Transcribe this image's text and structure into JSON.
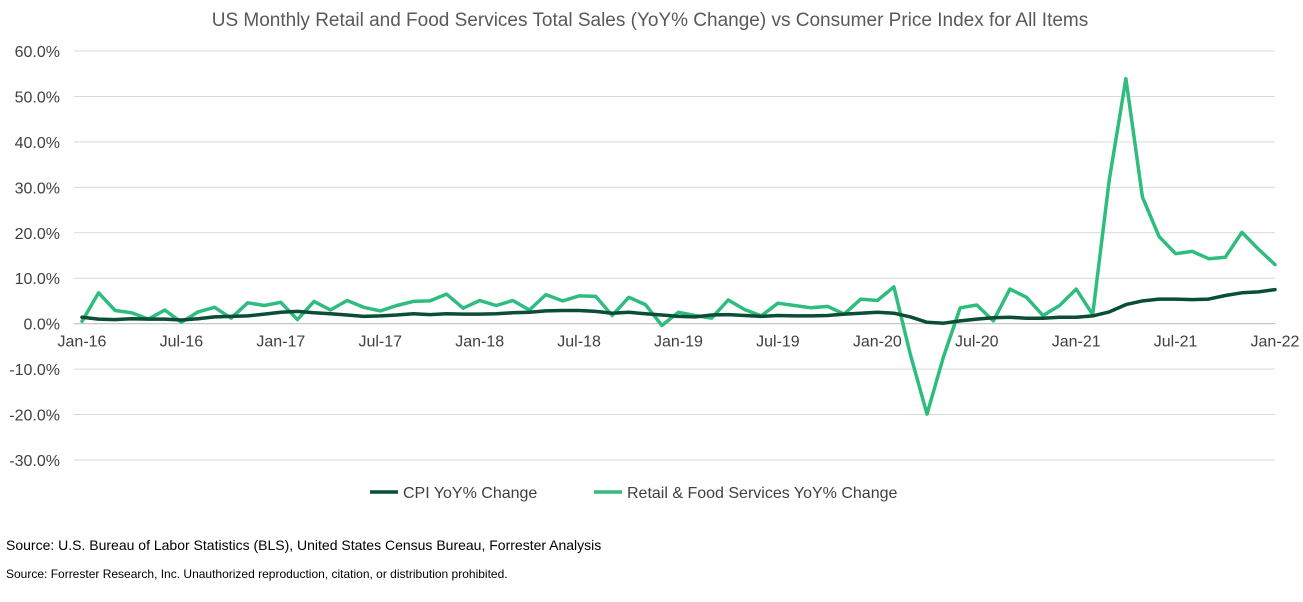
{
  "chart_data": {
    "type": "line",
    "title": "US Monthly Retail and Food Services Total Sales (YoY% Change) vs Consumer Price Index for All Items",
    "xlabel": "",
    "ylabel": "",
    "ylim": [
      -30,
      60
    ],
    "yticks": [
      "60.0%",
      "50.0%",
      "40.0%",
      "30.0%",
      "20.0%",
      "10.0%",
      "0.0%",
      "-10.0%",
      "-20.0%",
      "-30.0%"
    ],
    "x_tick_labels": [
      "Jan-16",
      "Jul-16",
      "Jan-17",
      "Jul-17",
      "Jan-18",
      "Jul-18",
      "Jan-19",
      "Jul-19",
      "Jan-20",
      "Jul-20",
      "Jan-21",
      "Jul-21",
      "Jan-22"
    ],
    "x": [
      "Jan-16",
      "Feb-16",
      "Mar-16",
      "Apr-16",
      "May-16",
      "Jun-16",
      "Jul-16",
      "Aug-16",
      "Sep-16",
      "Oct-16",
      "Nov-16",
      "Dec-16",
      "Jan-17",
      "Feb-17",
      "Mar-17",
      "Apr-17",
      "May-17",
      "Jun-17",
      "Jul-17",
      "Aug-17",
      "Sep-17",
      "Oct-17",
      "Nov-17",
      "Dec-17",
      "Jan-18",
      "Feb-18",
      "Mar-18",
      "Apr-18",
      "May-18",
      "Jun-18",
      "Jul-18",
      "Aug-18",
      "Sep-18",
      "Oct-18",
      "Nov-18",
      "Dec-18",
      "Jan-19",
      "Feb-19",
      "Mar-19",
      "Apr-19",
      "May-19",
      "Jun-19",
      "Jul-19",
      "Aug-19",
      "Sep-19",
      "Oct-19",
      "Nov-19",
      "Dec-19",
      "Jan-20",
      "Feb-20",
      "Mar-20",
      "Apr-20",
      "May-20",
      "Jun-20",
      "Jul-20",
      "Aug-20",
      "Sep-20",
      "Oct-20",
      "Nov-20",
      "Dec-20",
      "Jan-21",
      "Feb-21",
      "Mar-21",
      "Apr-21",
      "May-21",
      "Jun-21",
      "Jul-21",
      "Aug-21",
      "Sep-21",
      "Oct-21",
      "Nov-21",
      "Dec-21",
      "Jan-22"
    ],
    "series": [
      {
        "name": "CPI YoY% Change",
        "color": "#0b4d35",
        "values": [
          1.4,
          1.0,
          0.9,
          1.1,
          1.0,
          1.0,
          0.8,
          1.1,
          1.5,
          1.6,
          1.7,
          2.1,
          2.5,
          2.7,
          2.4,
          2.2,
          1.9,
          1.6,
          1.7,
          1.9,
          2.2,
          2.0,
          2.2,
          2.1,
          2.1,
          2.2,
          2.4,
          2.5,
          2.8,
          2.9,
          2.9,
          2.7,
          2.3,
          2.5,
          2.2,
          1.9,
          1.6,
          1.5,
          1.9,
          2.0,
          1.8,
          1.6,
          1.8,
          1.7,
          1.7,
          1.8,
          2.1,
          2.3,
          2.5,
          2.3,
          1.5,
          0.3,
          0.1,
          0.6,
          1.0,
          1.3,
          1.4,
          1.2,
          1.2,
          1.4,
          1.4,
          1.7,
          2.6,
          4.2,
          5.0,
          5.4,
          5.4,
          5.3,
          5.4,
          6.2,
          6.8,
          7.0,
          7.5
        ]
      },
      {
        "name": "Retail & Food Services YoY% Change",
        "color": "#2ebd7e",
        "values": [
          0.5,
          6.8,
          2.9,
          2.4,
          1.0,
          3.0,
          0.3,
          2.6,
          3.6,
          1.2,
          4.6,
          4.0,
          4.7,
          0.9,
          4.9,
          3.0,
          5.1,
          3.6,
          2.8,
          4.0,
          4.9,
          5.0,
          6.5,
          3.4,
          5.1,
          4.0,
          5.1,
          3.0,
          6.4,
          5.0,
          6.1,
          6.0,
          1.8,
          5.8,
          4.2,
          -0.4,
          2.5,
          1.8,
          1.2,
          5.2,
          3.1,
          1.7,
          4.5,
          4.0,
          3.5,
          3.8,
          2.1,
          5.4,
          5.1,
          8.1,
          -6.9,
          -19.9,
          -7.2,
          3.5,
          4.1,
          0.6,
          7.6,
          5.8,
          1.8,
          4.0,
          7.6,
          2.0,
          31.7,
          53.9,
          27.9,
          19.2,
          15.4,
          15.9,
          14.3,
          14.6,
          20.1,
          16.4,
          13.0
        ]
      }
    ],
    "grid": true,
    "legend_position": "bottom"
  },
  "footer": {
    "source_line": "Source: U.S. Bureau of Labor Statistics (BLS), United States Census Bureau, Forrester Analysis",
    "copyright_line": "Source: Forrester Research, Inc. Unauthorized reproduction, citation, or distribution prohibited."
  },
  "colors": {
    "gridline": "#d9d9d9",
    "axis": "#bfbfbf"
  }
}
